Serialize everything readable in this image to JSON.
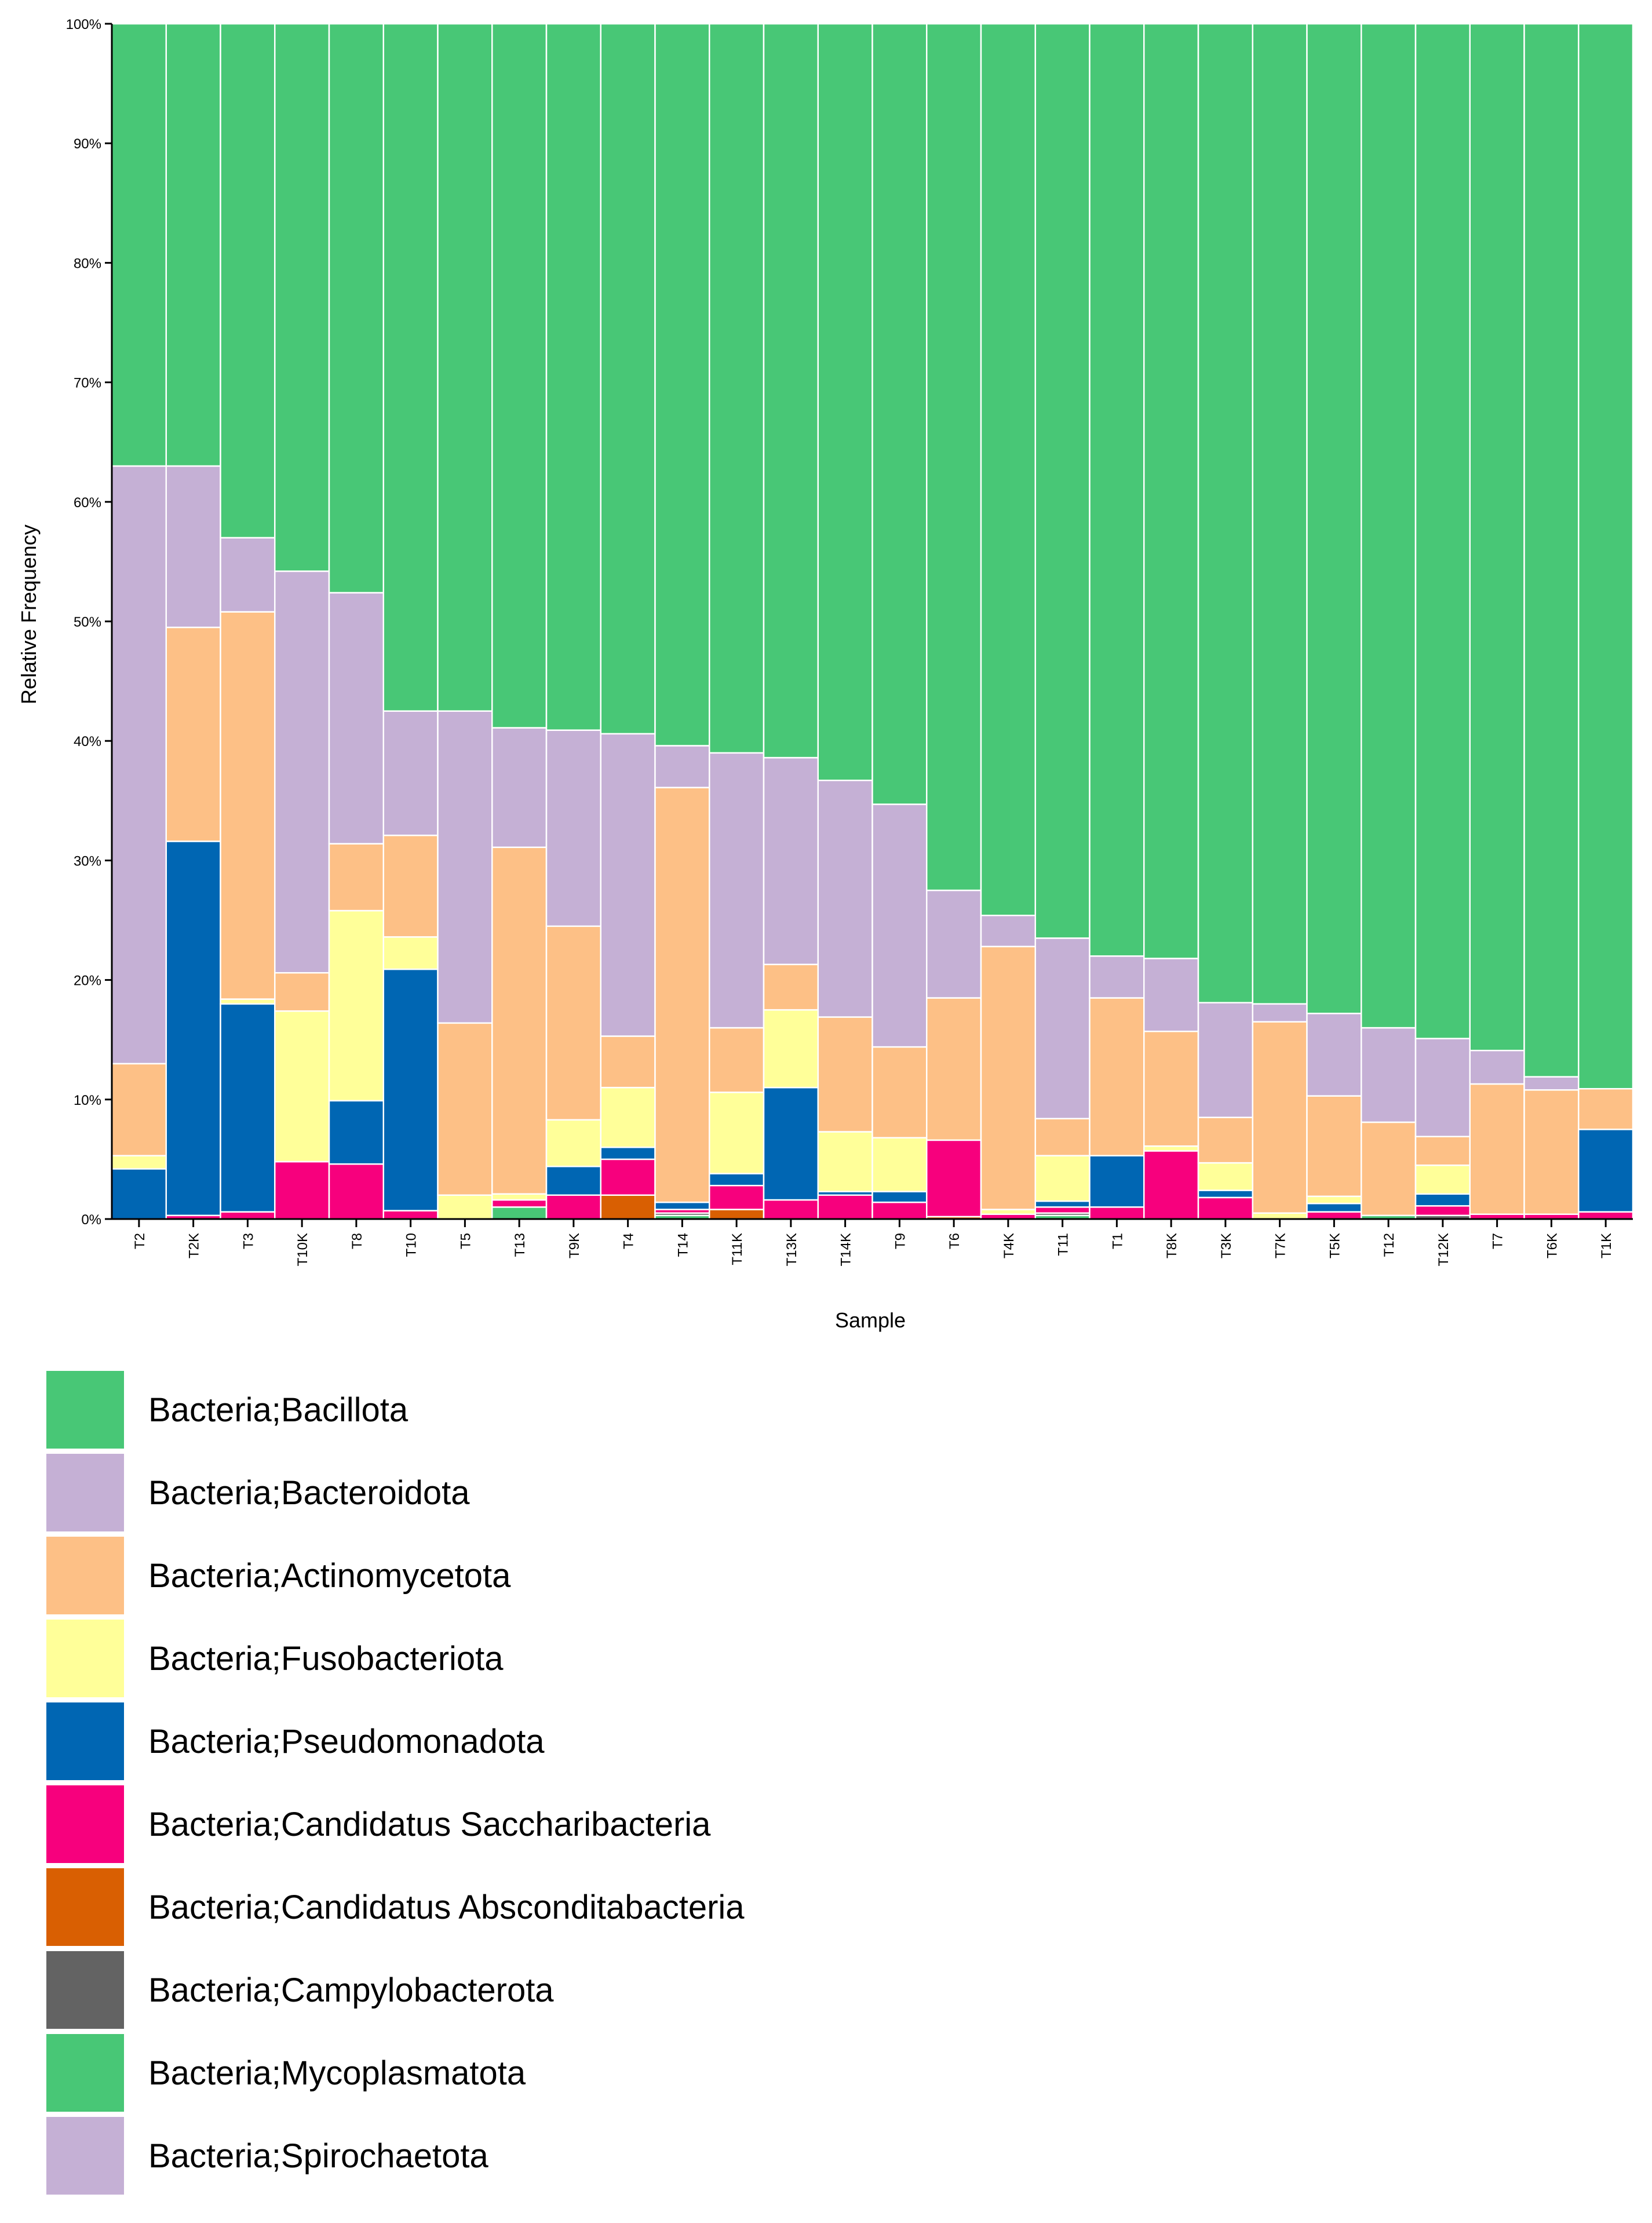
{
  "chart_data": {
    "type": "bar",
    "stacked": true,
    "xlabel": "Sample",
    "ylabel": "Relative Frequency",
    "ylim": [
      0,
      100
    ],
    "y_ticks": [
      "0%",
      "10%",
      "20%",
      "30%",
      "40%",
      "50%",
      "60%",
      "70%",
      "80%",
      "90%",
      "100%"
    ],
    "categories": [
      "T2",
      "T2K",
      "T3",
      "T10K",
      "T8",
      "T10",
      "T5",
      "T13",
      "T9K",
      "T4",
      "T14",
      "T11K",
      "T13K",
      "T14K",
      "T9",
      "T6",
      "T4K",
      "T11",
      "T1",
      "T8K",
      "T3K",
      "T7K",
      "T5K",
      "T12",
      "T12K",
      "T7",
      "T6K",
      "T1K"
    ],
    "series": [
      {
        "name": "Bacteria;Mycoplasmatota",
        "color": "#48c776",
        "values": [
          0,
          0,
          0,
          0,
          0,
          0,
          0,
          1.0,
          0,
          0,
          0.3,
          0,
          0,
          0,
          0,
          0,
          0,
          0.3,
          0,
          0,
          0,
          0,
          0,
          0.3,
          0,
          0,
          0,
          0
        ]
      },
      {
        "name": "Bacteria;Campylobacterota",
        "color": "#636363",
        "values": [
          0,
          0,
          0,
          0,
          0,
          0,
          0,
          0,
          0,
          0,
          0.2,
          0,
          0,
          0,
          0,
          0,
          0,
          0.2,
          0,
          0,
          0,
          0,
          0,
          0,
          0.3,
          0,
          0,
          0
        ]
      },
      {
        "name": "Bacteria;Candidatus Absconditabacteria",
        "color": "#d95f02",
        "values": [
          0,
          0,
          0,
          0,
          0,
          0,
          0,
          0,
          0,
          2.0,
          0,
          0.8,
          0,
          0,
          0,
          0.2,
          0,
          0,
          0,
          0,
          0,
          0,
          0,
          0,
          0,
          0,
          0,
          0
        ]
      },
      {
        "name": "Bacteria;Candidatus Saccharibacteria",
        "color": "#f7007d",
        "values": [
          0,
          0.3,
          0.6,
          4.8,
          4.6,
          0.7,
          0,
          0.6,
          2.0,
          3.0,
          0.3,
          2.0,
          1.6,
          2.0,
          1.4,
          6.4,
          0.4,
          0.5,
          1.0,
          5.7,
          1.8,
          0,
          0.6,
          0,
          0.8,
          0.4,
          0.4,
          0.6
        ]
      },
      {
        "name": "Bacteria;Pseudomonadota",
        "color": "#0066b3",
        "values": [
          4.2,
          31.3,
          17.4,
          0,
          5.3,
          20.2,
          0,
          0,
          2.4,
          1.0,
          0.6,
          1.0,
          9.4,
          0.3,
          0.9,
          0,
          0,
          0.5,
          4.3,
          0,
          0.6,
          0,
          0.7,
          0,
          1.0,
          0,
          0,
          6.9
        ]
      },
      {
        "name": "Bacteria;Fusobacteriota",
        "color": "#ffff99",
        "values": [
          1.1,
          0,
          0.4,
          12.6,
          15.9,
          2.7,
          2.0,
          0.5,
          3.9,
          5.0,
          0,
          6.8,
          6.5,
          5.0,
          4.5,
          0,
          0.4,
          3.8,
          0,
          0.4,
          2.3,
          0.5,
          0.6,
          0,
          2.4,
          0,
          0,
          0
        ]
      },
      {
        "name": "Bacteria;Actinomycetota",
        "color": "#fdc086",
        "values": [
          7.7,
          17.9,
          32.4,
          3.2,
          5.6,
          8.5,
          14.4,
          29.0,
          16.2,
          4.3,
          34.7,
          5.4,
          3.8,
          9.6,
          7.6,
          11.9,
          22.0,
          3.1,
          13.2,
          9.6,
          3.8,
          16.0,
          8.4,
          7.8,
          2.4,
          10.9,
          10.4,
          3.4
        ]
      },
      {
        "name": "Bacteria;Bacteroidota",
        "color": "#c5b0d5",
        "values": [
          50.0,
          13.5,
          6.2,
          33.6,
          21.0,
          10.4,
          26.1,
          10.0,
          16.4,
          25.3,
          3.5,
          23.0,
          17.3,
          19.8,
          20.3,
          9.0,
          2.6,
          15.1,
          3.5,
          6.1,
          9.6,
          1.5,
          6.9,
          7.9,
          8.2,
          2.8,
          1.1,
          0
        ]
      },
      {
        "name": "Bacteria;Bacillota",
        "color": "#48c776",
        "values": [
          37.0,
          37.0,
          43.0,
          45.8,
          47.6,
          57.5,
          57.5,
          58.9,
          59.1,
          59.4,
          60.4,
          61.0,
          61.4,
          63.3,
          65.3,
          72.5,
          74.6,
          76.5,
          78.0,
          78.2,
          81.9,
          82.0,
          82.8,
          84.0,
          84.9,
          85.9,
          88.1,
          89.1
        ]
      }
    ],
    "legend": [
      {
        "label": "Bacteria;Bacillota",
        "color": "#48c776"
      },
      {
        "label": "Bacteria;Bacteroidota",
        "color": "#c5b0d5"
      },
      {
        "label": "Bacteria;Actinomycetota",
        "color": "#fdc086"
      },
      {
        "label": "Bacteria;Fusobacteriota",
        "color": "#ffff99"
      },
      {
        "label": "Bacteria;Pseudomonadota",
        "color": "#0066b3"
      },
      {
        "label": "Bacteria;Candidatus Saccharibacteria",
        "color": "#f7007d"
      },
      {
        "label": "Bacteria;Candidatus Absconditabacteria",
        "color": "#d95f02"
      },
      {
        "label": "Bacteria;Campylobacterota",
        "color": "#636363"
      },
      {
        "label": "Bacteria;Mycoplasmatota",
        "color": "#48c776"
      },
      {
        "label": "Bacteria;Spirochaetota",
        "color": "#c5b0d5"
      }
    ]
  }
}
